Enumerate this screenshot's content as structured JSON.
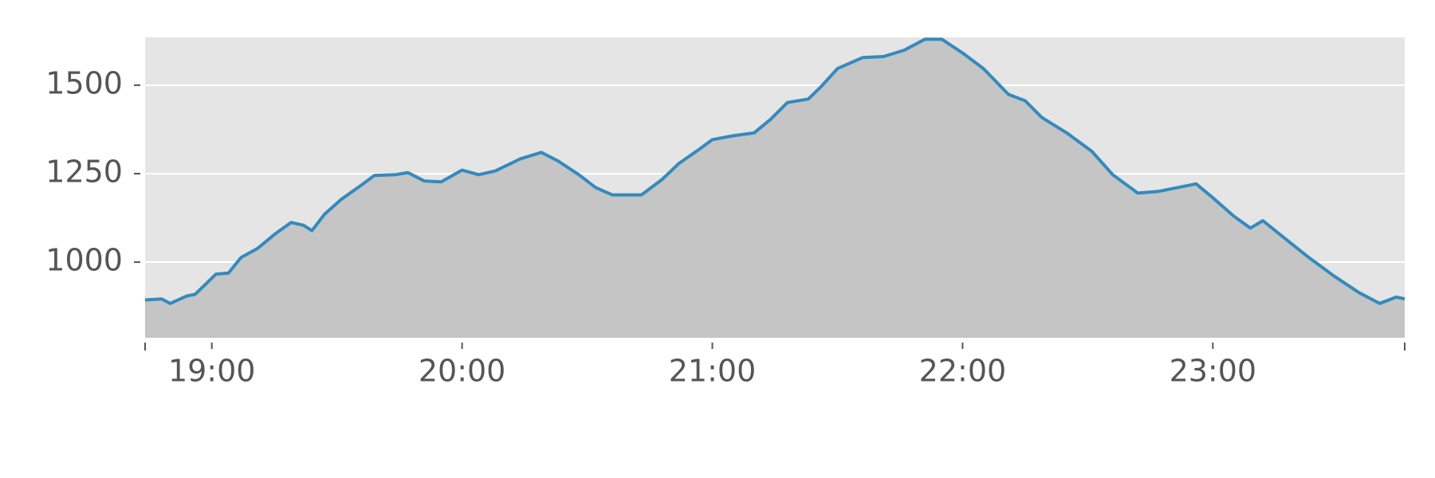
{
  "chart_data": {
    "type": "area",
    "x": [
      "18:44",
      "18:48",
      "18:50",
      "18:54",
      "18:56",
      "19:01",
      "19:04",
      "19:07",
      "19:11",
      "19:15",
      "19:19",
      "19:22",
      "19:24",
      "19:27",
      "19:31",
      "19:36",
      "19:39",
      "19:44",
      "19:47",
      "19:51",
      "19:55",
      "20:00",
      "20:04",
      "20:08",
      "20:14",
      "20:19",
      "20:23",
      "20:28",
      "20:32",
      "20:36",
      "20:43",
      "20:48",
      "20:52",
      "20:57",
      "21:00",
      "21:05",
      "21:10",
      "21:14",
      "21:18",
      "21:23",
      "21:26",
      "21:30",
      "21:36",
      "21:41",
      "21:46",
      "21:51",
      "21:55",
      "22:00",
      "22:05",
      "22:11",
      "22:15",
      "22:19",
      "22:25",
      "22:31",
      "22:36",
      "22:42",
      "22:47",
      "22:53",
      "22:56",
      "23:00",
      "23:05",
      "23:09",
      "23:12",
      "23:18",
      "23:23",
      "23:29",
      "23:35",
      "23:40",
      "23:44",
      "23:46"
    ],
    "values": [
      893,
      896,
      883,
      904,
      909,
      966,
      969,
      1013,
      1039,
      1078,
      1112,
      1104,
      1089,
      1135,
      1177,
      1219,
      1245,
      1247,
      1253,
      1229,
      1227,
      1260,
      1247,
      1258,
      1292,
      1310,
      1286,
      1247,
      1211,
      1190,
      1190,
      1234,
      1279,
      1320,
      1346,
      1357,
      1365,
      1404,
      1451,
      1461,
      1495,
      1547,
      1578,
      1581,
      1599,
      1630,
      1630,
      1591,
      1547,
      1474,
      1456,
      1409,
      1365,
      1313,
      1247,
      1195,
      1200,
      1214,
      1221,
      1182,
      1130,
      1096,
      1117,
      1060,
      1013,
      961,
      914,
      883,
      901,
      896
    ],
    "color": "#348abd",
    "fill_color": "#c5c5c5",
    "background": "#e5e5e5",
    "xlim": [
      "18:44",
      "23:46"
    ],
    "xticks": [
      "19:00",
      "20:00",
      "21:00",
      "22:00",
      "23:00"
    ],
    "ylim": [
      786,
      1635
    ],
    "yticks": [
      1000,
      1250,
      1500
    ],
    "grid": true
  }
}
